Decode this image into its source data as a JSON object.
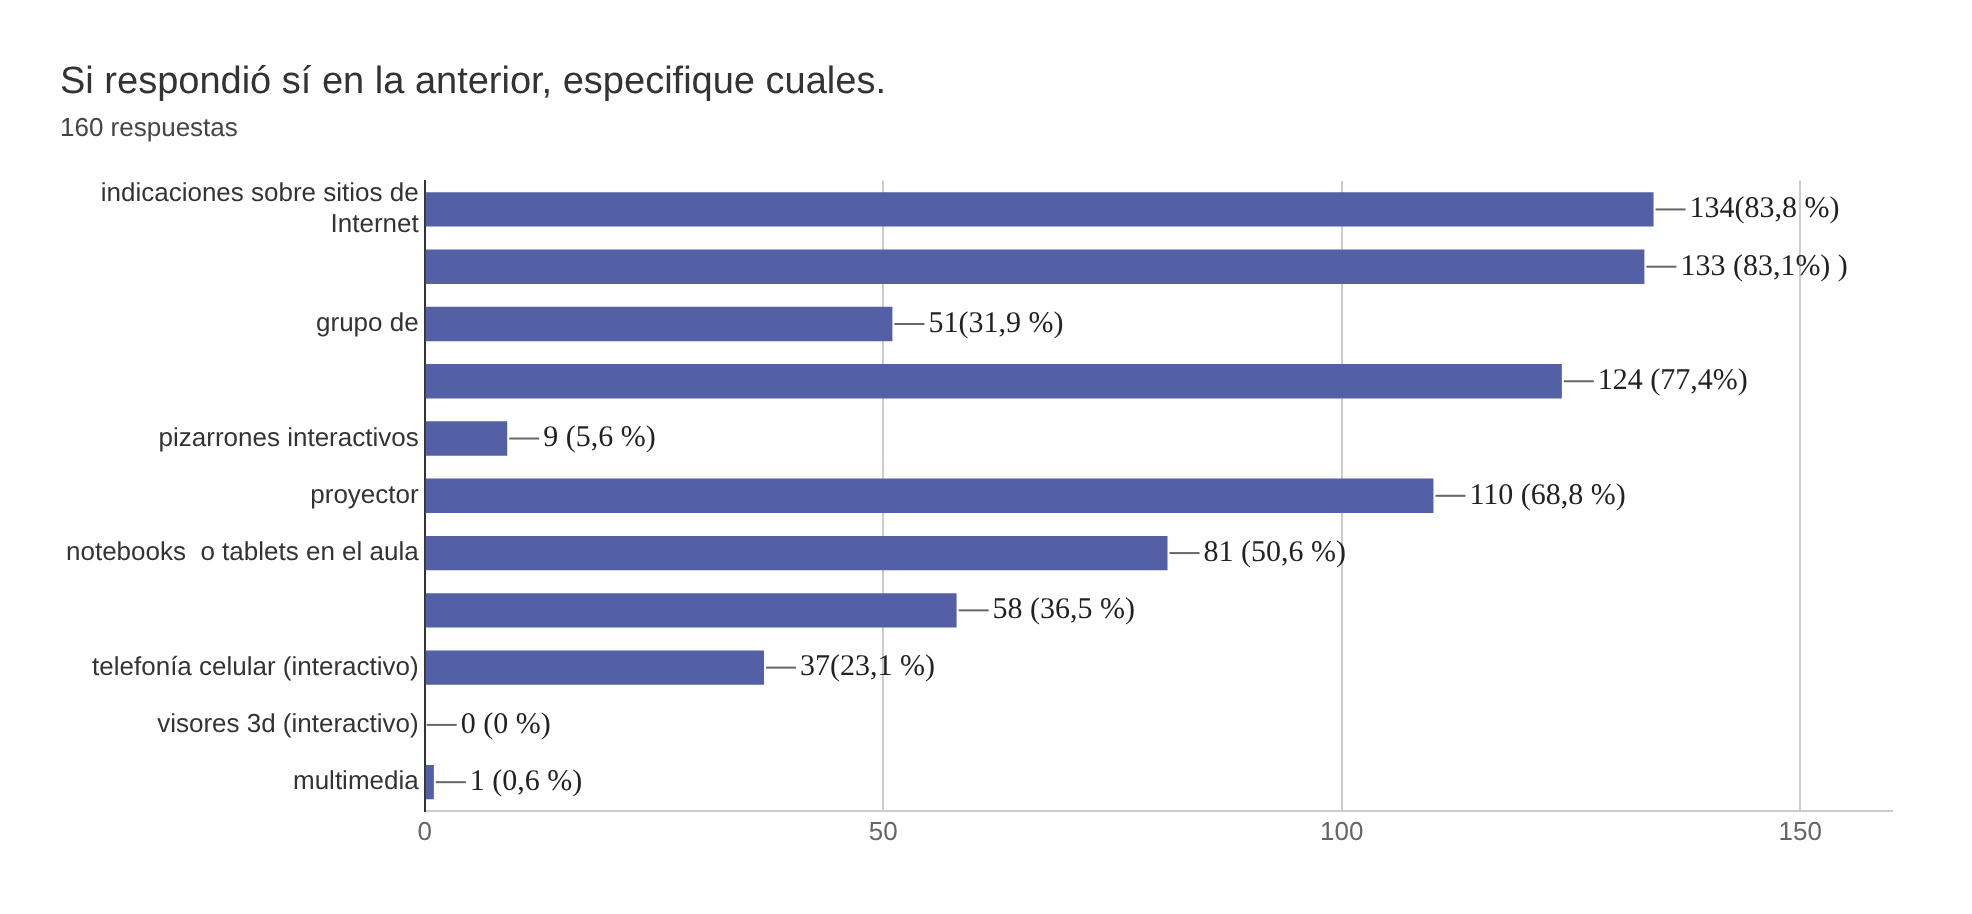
{
  "chart_data": {
    "type": "bar",
    "orientation": "horizontal",
    "title": "Si respondió sí en la anterior, especifique cuales.",
    "subtitle": "160 respuestas",
    "categories": [
      "indicaciones sobre sitios de Internet",
      null,
      "grupo de",
      null,
      "pizarrones interactivos",
      "proyector",
      "notebooks  o tablets en el aula",
      null,
      "telefonía celular (interactivo)",
      "visores 3d (interactivo)",
      "multimedia"
    ],
    "values": [
      134,
      133,
      51,
      124,
      9,
      110,
      81,
      58,
      37,
      0,
      1
    ],
    "value_labels": [
      "134(83,8 %)",
      "133 (83,1%) )",
      "51(31,9 %)",
      "124 (77,4%)",
      "9 (5,6 %)",
      "110 (68,8 %)",
      "81 (50,6 %)",
      "58 (36,5 %)",
      "37(23,1 %)",
      "0 (0 %)",
      "1 (0,6 %)"
    ],
    "color": "#5360a5",
    "xlim": [
      0,
      160
    ],
    "xticks": [
      0,
      50,
      100,
      150
    ],
    "grid": "x",
    "legend": false
  }
}
